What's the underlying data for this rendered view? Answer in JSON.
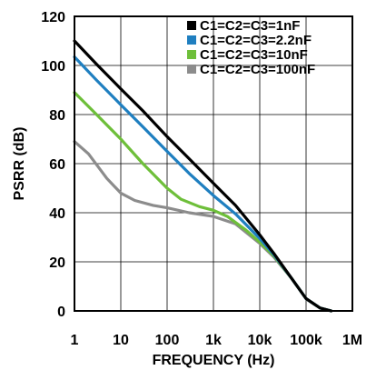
{
  "chart_data": {
    "type": "line",
    "title": "",
    "xlabel": "FREQUENCY (Hz)",
    "ylabel": "PSRR (dB)",
    "x_scale": "log",
    "xlim": [
      1,
      1000000
    ],
    "ylim": [
      0,
      120
    ],
    "x_ticks": [
      1,
      10,
      100,
      1000,
      10000,
      100000,
      1000000
    ],
    "x_tick_labels": [
      "1",
      "10",
      "100",
      "1k",
      "10k",
      "100k",
      "1M"
    ],
    "y_ticks": [
      0,
      20,
      40,
      60,
      80,
      100,
      120
    ],
    "y_tick_labels": [
      "0",
      "20",
      "40",
      "60",
      "80",
      "100",
      "120"
    ],
    "grid": true,
    "legend_position": "top-right",
    "series": [
      {
        "name": "C1=C2=C3=1nF",
        "color": "#000000",
        "points": [
          [
            1,
            110
          ],
          [
            3,
            100.5
          ],
          [
            10,
            90.5
          ],
          [
            30,
            81.5
          ],
          [
            100,
            71
          ],
          [
            300,
            62
          ],
          [
            1000,
            52
          ],
          [
            3000,
            43
          ],
          [
            10000,
            31
          ],
          [
            20000,
            23.5
          ],
          [
            50000,
            13
          ],
          [
            100000,
            5
          ],
          [
            200000,
            1.2
          ],
          [
            350000,
            0
          ]
        ]
      },
      {
        "name": "C1=C2=C3=2.2nF",
        "color": "#1f7fc0",
        "points": [
          [
            1,
            103.5
          ],
          [
            3,
            94
          ],
          [
            10,
            84
          ],
          [
            30,
            75
          ],
          [
            100,
            65
          ],
          [
            300,
            56
          ],
          [
            1000,
            47
          ],
          [
            3000,
            39.5
          ],
          [
            10000,
            29.5
          ],
          [
            20000,
            23
          ],
          [
            50000,
            13
          ],
          [
            100000,
            5
          ],
          [
            200000,
            1.2
          ],
          [
            350000,
            0
          ]
        ]
      },
      {
        "name": "C1=C2=C3=10nF",
        "color": "#6ebf3a",
        "points": [
          [
            1,
            89
          ],
          [
            3,
            80
          ],
          [
            10,
            70
          ],
          [
            30,
            60
          ],
          [
            100,
            50
          ],
          [
            200,
            45.5
          ],
          [
            500,
            42.5
          ],
          [
            1000,
            41
          ],
          [
            2000,
            38.5
          ],
          [
            5000,
            33
          ],
          [
            10000,
            28
          ],
          [
            20000,
            22.5
          ],
          [
            50000,
            13
          ],
          [
            100000,
            5
          ],
          [
            200000,
            1.2
          ],
          [
            350000,
            0
          ]
        ]
      },
      {
        "name": "C1=C2=C3=100nF",
        "color": "#8c8c8c",
        "points": [
          [
            1,
            69
          ],
          [
            2,
            64
          ],
          [
            5,
            54
          ],
          [
            10,
            48
          ],
          [
            20,
            45
          ],
          [
            50,
            43
          ],
          [
            100,
            42
          ],
          [
            300,
            40
          ],
          [
            1000,
            38.5
          ],
          [
            3000,
            35.5
          ],
          [
            10000,
            27.5
          ],
          [
            20000,
            22
          ],
          [
            50000,
            13
          ],
          [
            100000,
            5
          ],
          [
            200000,
            1.2
          ],
          [
            350000,
            0
          ]
        ]
      }
    ]
  }
}
